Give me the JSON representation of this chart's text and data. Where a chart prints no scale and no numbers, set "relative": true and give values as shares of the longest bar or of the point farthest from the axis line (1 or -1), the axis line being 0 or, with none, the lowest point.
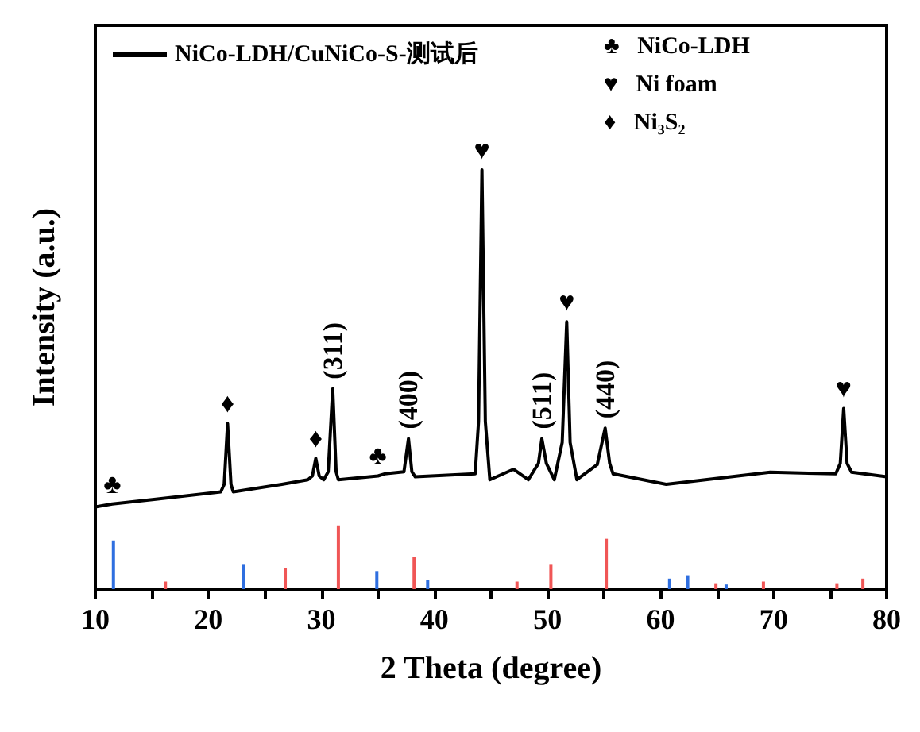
{
  "chart_data": {
    "type": "line",
    "relative": true,
    "xlabel": "2 Theta (degree)",
    "ylabel": "Intensity (a.u.)",
    "xlim": [
      10,
      80
    ],
    "xticks": [
      10,
      {
        "value": 15,
        "label": null
      },
      20,
      {
        "value": 25,
        "label": null
      },
      30,
      {
        "value": 35,
        "label": null
      },
      40,
      {
        "value": 45,
        "label": null
      },
      50,
      {
        "value": 55,
        "label": null
      },
      60,
      {
        "value": 65,
        "label": null
      },
      70,
      {
        "value": 75,
        "label": null
      },
      80
    ],
    "legend": "top left",
    "grid": false,
    "marker": "none",
    "line_style": "solid",
    "series": [
      {
        "name": "NiCo-LDH/CuNiCo-S-测试后",
        "color": "#000000",
        "x": [
          10,
          11.5,
          15.2,
          21.1,
          21.4,
          21.7,
          22.0,
          22.2,
          26.5,
          28.8,
          29.2,
          29.5,
          29.8,
          30.2,
          30.6,
          31.0,
          31.3,
          31.5,
          35.0,
          35.6,
          37.3,
          37.7,
          38.0,
          38.3,
          43.6,
          43.9,
          44.2,
          44.5,
          44.9,
          47.0,
          48.3,
          49.2,
          49.5,
          49.9,
          50.6,
          51.3,
          51.7,
          52.0,
          52.6,
          54.4,
          55.1,
          55.5,
          55.8,
          60.5,
          69.7,
          75.5,
          75.9,
          76.2,
          76.5,
          76.9,
          80
        ],
        "values": [
          0.196,
          0.203,
          0.214,
          0.232,
          0.25,
          0.395,
          0.25,
          0.232,
          0.25,
          0.261,
          0.27,
          0.312,
          0.27,
          0.261,
          0.28,
          0.478,
          0.28,
          0.261,
          0.27,
          0.275,
          0.28,
          0.359,
          0.28,
          0.268,
          0.275,
          0.4,
          1,
          0.4,
          0.261,
          0.286,
          0.261,
          0.3,
          0.359,
          0.3,
          0.261,
          0.35,
          0.638,
          0.35,
          0.261,
          0.297,
          0.384,
          0.3,
          0.275,
          0.25,
          0.279,
          0.275,
          0.3,
          0.431,
          0.3,
          0.279,
          0.268
        ]
      },
      {
        "color": "#2f6fe0",
        "type": "bar",
        "x": [
          11.6,
          23.1,
          34.9,
          39.4,
          60.8,
          62.4,
          65.8
        ],
        "values": [
          0.116,
          0.058,
          0.043,
          0.022,
          0.025,
          0.033,
          0.011
        ]
      },
      {
        "color": "#f05656",
        "type": "bar",
        "x": [
          16.2,
          26.8,
          31.5,
          38.2,
          47.3,
          50.3,
          55.2,
          64.9,
          69.1,
          75.6,
          77.9
        ],
        "values": [
          0.018,
          0.051,
          0.152,
          0.076,
          0.018,
          0.058,
          0.12,
          0.014,
          0.018,
          0.014,
          0.025
        ]
      }
    ],
    "annotations": [
      {
        "text": "♣",
        "x": 11.5,
        "y": 0.203
      },
      {
        "text": "♦",
        "x": 21.7,
        "y": 0.395
      },
      {
        "text": "♦",
        "x": 29.5,
        "y": 0.312
      },
      {
        "text": "(311)",
        "x": 31.0,
        "y": 0.478
      },
      {
        "text": "♣",
        "x": 35.0,
        "y": 0.27
      },
      {
        "text": "(400)",
        "x": 37.7,
        "y": 0.359
      },
      {
        "text": "♥",
        "x": 44.2,
        "y": 1
      },
      {
        "text": "(511)",
        "x": 49.5,
        "y": 0.359
      },
      {
        "text": "♥",
        "x": 51.7,
        "y": 0.638
      },
      {
        "text": "(440)",
        "x": 55.1,
        "y": 0.384
      },
      {
        "text": "♥",
        "x": 76.2,
        "y": 0.431
      },
      "♣   NiCo-LDH",
      "♥   Ni foam",
      "♦   Ni₃S₂"
    ]
  }
}
